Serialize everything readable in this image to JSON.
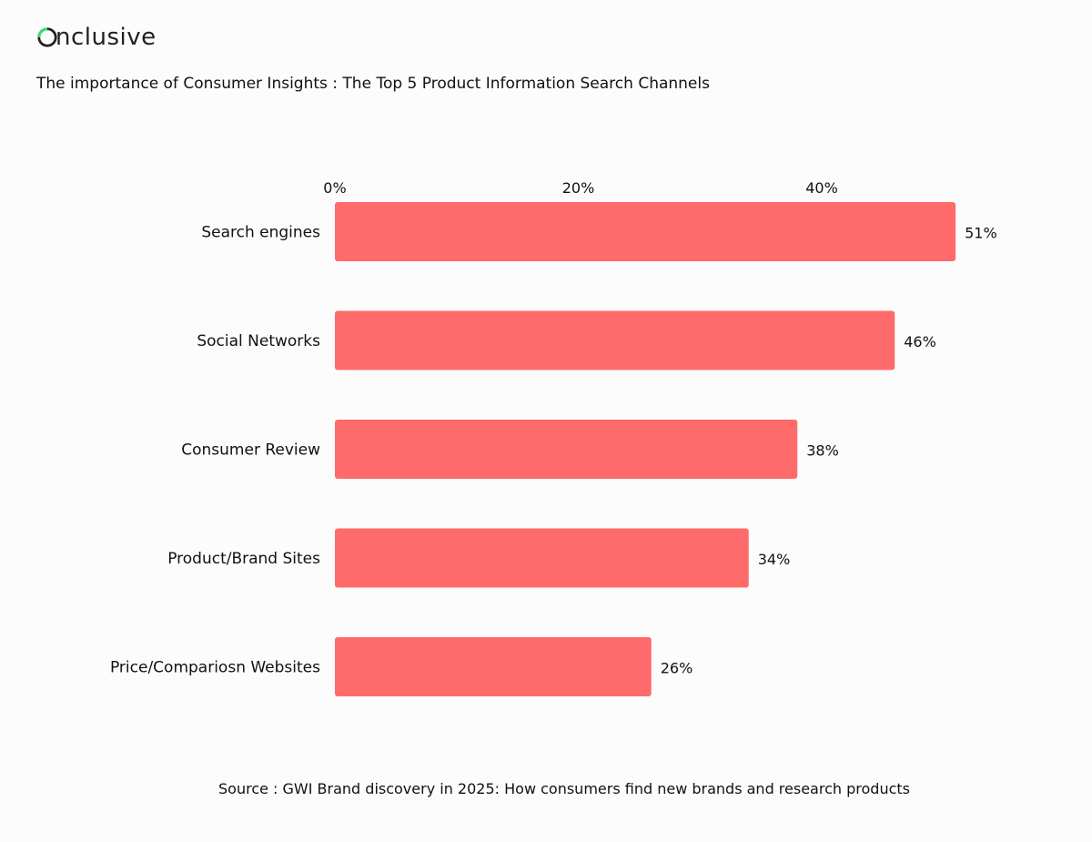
{
  "brand": {
    "name": "Onclusive",
    "accent": "#2ee06f"
  },
  "title": "The importance of Consumer Insights : The Top 5 Product Information Search Channels",
  "source": "Source : GWI  Brand discovery in 2025: How consumers find new brands and research products",
  "chart_data": {
    "type": "bar",
    "orientation": "horizontal",
    "categories": [
      "Search engines",
      "Social Networks",
      "Consumer Review",
      "Product/Brand Sites",
      "Price/Compariosn Websites"
    ],
    "values": [
      51,
      46,
      38,
      34,
      26
    ],
    "data_labels": [
      "51%",
      "46%",
      "38%",
      "34%",
      "26%"
    ],
    "x_ticks": [
      "0%",
      "20%",
      "40%"
    ],
    "x_tick_values": [
      0,
      20,
      40
    ],
    "xlim": [
      0,
      51
    ],
    "axis_position": "top",
    "grid": false,
    "bar_color": "#ff6b6b"
  }
}
